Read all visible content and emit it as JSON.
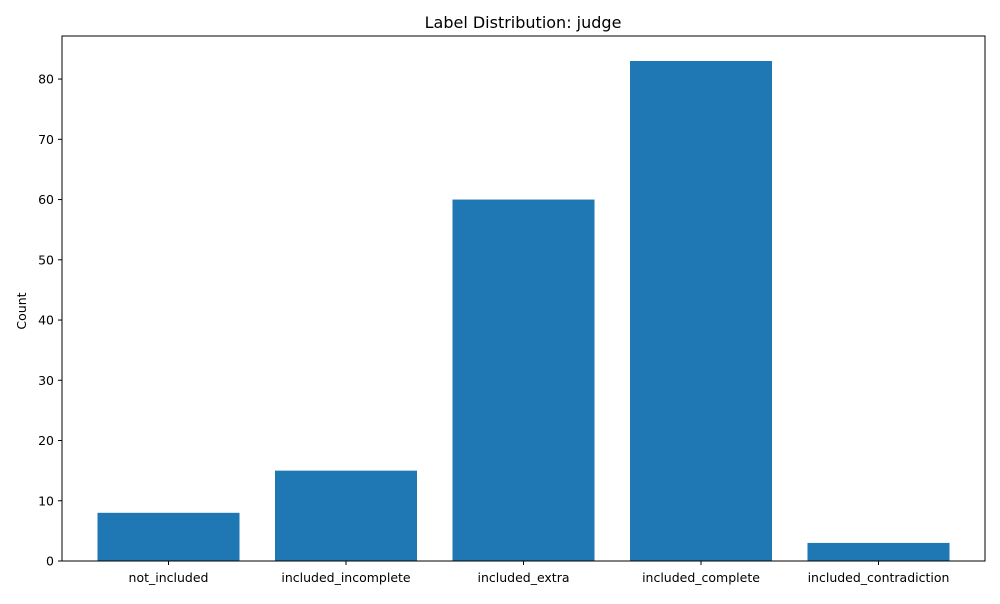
{
  "chart_data": {
    "type": "bar",
    "title": "Label Distribution: judge",
    "xlabel": "",
    "ylabel": "Count",
    "categories": [
      "not_included",
      "included_incomplete",
      "included_extra",
      "included_complete",
      "included_contradiction"
    ],
    "values": [
      8,
      15,
      60,
      83,
      3
    ],
    "ylim": [
      0,
      87.15
    ],
    "yticks": [
      0,
      10,
      20,
      30,
      40,
      50,
      60,
      70,
      80
    ],
    "grid": false,
    "legend": "none",
    "bar_color": "#1f77b4"
  }
}
